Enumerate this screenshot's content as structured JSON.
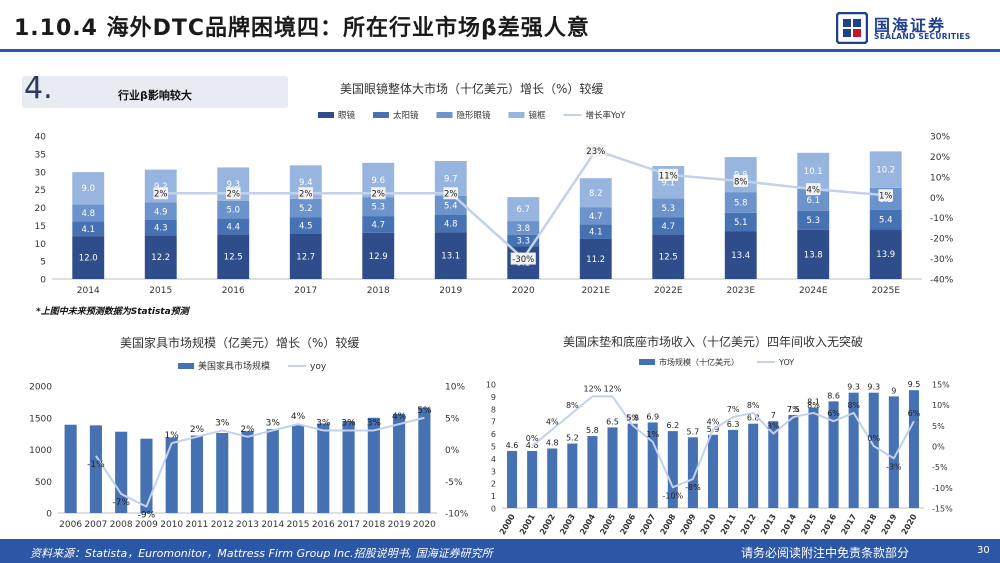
{
  "header": {
    "title": "1.10.4 海外DTC品牌困境四：所在行业市场β差强人意",
    "logo_cn": "国海证券",
    "logo_en": "SEALAND SECURITIES"
  },
  "badge": {
    "number": "4.",
    "text": "行业β影响较大"
  },
  "note": "*上图中未来预测数据为Statista预测",
  "footer": {
    "source": "资料来源：Statista，Euromonitor，Mattress Firm Group Inc.招股说明书, 国海证券研究所",
    "disclaimer": "请务必阅读附注中免责条款部分",
    "page": "30"
  },
  "colors": {
    "brand": "#2c57a6",
    "dark": "#2e4d8a",
    "mid": "#4672b4",
    "light": "#6c93cb",
    "lighter": "#98b5df",
    "line": "#c3d1eb"
  },
  "chart_data": [
    {
      "type": "bar",
      "stacked": true,
      "title": "美国眼镜整体大市场（十亿美元）增长（%）较缓",
      "categories": [
        "2014",
        "2015",
        "2016",
        "2017",
        "2018",
        "2019",
        "2020",
        "2021E",
        "2022E",
        "2023E",
        "2024E",
        "2025E"
      ],
      "series": [
        {
          "name": "眼镜",
          "values": [
            12.0,
            12.2,
            12.5,
            12.7,
            12.9,
            13.1,
            9.1,
            11.2,
            12.5,
            13.4,
            13.8,
            13.9
          ],
          "labels": [
            "12.0",
            "12.2",
            "12.5",
            "12.7",
            "12.9",
            "13.1",
            "9.1",
            "11.2",
            "12.5",
            "13.4",
            "13.8",
            "13.9"
          ]
        },
        {
          "name": "太阳镜",
          "values": [
            4.1,
            4.3,
            4.4,
            4.5,
            4.7,
            4.8,
            3.3,
            4.1,
            4.7,
            5.1,
            5.3,
            5.4
          ],
          "labels": [
            "4.1",
            "4.3",
            "4.4",
            "4.5",
            "4.7",
            "4.8",
            "3.3",
            "4.1",
            "4.7",
            "5.1",
            "5.3",
            "5.4"
          ]
        },
        {
          "name": "隐形眼镜",
          "values": [
            4.8,
            4.9,
            5.0,
            5.2,
            5.3,
            5.4,
            3.8,
            4.7,
            5.3,
            5.8,
            6.1,
            6.2
          ],
          "labels": [
            "4.8",
            "4.9",
            "5.0",
            "5.2",
            "5.3",
            "5.4",
            "3.8",
            "4.7",
            "5.3",
            "5.8",
            "6.1",
            "6.2"
          ]
        },
        {
          "name": "镜框",
          "values": [
            9.0,
            9.2,
            9.3,
            9.4,
            9.6,
            9.7,
            6.7,
            8.2,
            9.1,
            9.8,
            10.1,
            10.2
          ],
          "labels": [
            "9.0",
            "9.2",
            "9.3",
            "9.4",
            "9.6",
            "9.7",
            "6.7",
            "8.2",
            "9.1",
            "9.8",
            "10.1",
            "10.2"
          ]
        }
      ],
      "line": {
        "name": "增长率YoY",
        "values": [
          null,
          2,
          2,
          2,
          2,
          2,
          -30,
          23,
          11,
          8,
          4,
          1
        ],
        "labels": [
          "",
          "2%",
          "2%",
          "2%",
          "2%",
          "2%",
          "-30%",
          "23%",
          "11%",
          "8%",
          "4%",
          "1%"
        ]
      },
      "ylim": [
        0,
        40
      ],
      "yticks": [
        "0",
        "5",
        "10",
        "15",
        "20",
        "25",
        "30",
        "35",
        "40"
      ],
      "y2lim": [
        -40,
        30
      ],
      "y2ticks": [
        "-40%",
        "-30%",
        "-20%",
        "-10%",
        "0%",
        "10%",
        "20%",
        "30%"
      ],
      "legend": "top"
    },
    {
      "type": "bar",
      "title": "美国家具市场规模（亿美元）增长（%）较缓",
      "categories": [
        "2006",
        "2007",
        "2008",
        "2009",
        "2010",
        "2011",
        "2012",
        "2013",
        "2014",
        "2015",
        "2016",
        "2017",
        "2018",
        "2019",
        "2020"
      ],
      "series": [
        {
          "name": "美国家具市场规模",
          "values": [
            1390,
            1380,
            1280,
            1170,
            1190,
            1220,
            1260,
            1290,
            1320,
            1380,
            1410,
            1450,
            1500,
            1560,
            1660
          ]
        }
      ],
      "line": {
        "name": "yoy",
        "values": [
          null,
          -1,
          -7,
          -9,
          1,
          2,
          3,
          2,
          3,
          4,
          3,
          3,
          3,
          4,
          5
        ],
        "labels": [
          "",
          "-1%",
          "-7%",
          "-9%",
          "1%",
          "2%",
          "3%",
          "2%",
          "3%",
          "4%",
          "3%",
          "3%",
          "3%",
          "4%",
          "5%"
        ]
      },
      "ylim": [
        0,
        2000
      ],
      "yticks": [
        "0",
        "500",
        "1000",
        "1500",
        "2000"
      ],
      "y2lim": [
        -10,
        10
      ],
      "y2ticks": [
        "-10%",
        "-5%",
        "0%",
        "5%",
        "10%"
      ],
      "legend": "top"
    },
    {
      "type": "bar",
      "title": "美国床垫和底座市场收入（十亿美元）四年间收入无突破",
      "categories": [
        "2000",
        "2001",
        "2002",
        "2003",
        "2004",
        "2005",
        "2006",
        "2007",
        "2008",
        "2009",
        "2010",
        "2011",
        "2012",
        "2013",
        "2014",
        "2015",
        "2016",
        "2017",
        "2018",
        "2019",
        "2020"
      ],
      "series": [
        {
          "name": "市场规模（十亿美元）",
          "values": [
            4.6,
            4.6,
            4.8,
            5.2,
            5.8,
            6.5,
            6.8,
            6.9,
            6.2,
            5.7,
            5.9,
            6.3,
            6.8,
            7,
            7.5,
            8.1,
            8.6,
            9.3,
            9.3,
            9,
            9.5
          ],
          "labels": [
            "4.6",
            "4.6",
            "4.8",
            "5.2",
            "5.8",
            "6.5",
            "6.8",
            "6.9",
            "6.2",
            "5.7",
            "5.9",
            "6.3",
            "6.8",
            "7",
            "7.5",
            "8.1",
            "8.6",
            "9.3",
            "9.3",
            "9",
            "9.5"
          ]
        }
      ],
      "line": {
        "name": "YOY",
        "values": [
          null,
          0,
          4,
          8,
          12,
          12,
          5,
          1,
          -10,
          -8,
          4,
          7,
          8,
          3,
          7,
          8,
          6,
          8,
          0,
          -3,
          6
        ],
        "labels": [
          "",
          "0%",
          "4%",
          "8%",
          "12%",
          "12%",
          "5%",
          "1%",
          "-10%",
          "-8%",
          "4%",
          "7%",
          "8%",
          "3%",
          "7%",
          "8%",
          "6%",
          "8%",
          "0%",
          "-3%",
          "6%"
        ]
      },
      "ylim": [
        0,
        10
      ],
      "yticks": [
        "0",
        "1",
        "2",
        "3",
        "4",
        "5",
        "6",
        "7",
        "8",
        "9",
        "10"
      ],
      "y2lim": [
        -15,
        15
      ],
      "y2ticks": [
        "-15%",
        "-10%",
        "-5%",
        "0%",
        "5%",
        "10%",
        "15%"
      ],
      "legend": "top"
    }
  ]
}
